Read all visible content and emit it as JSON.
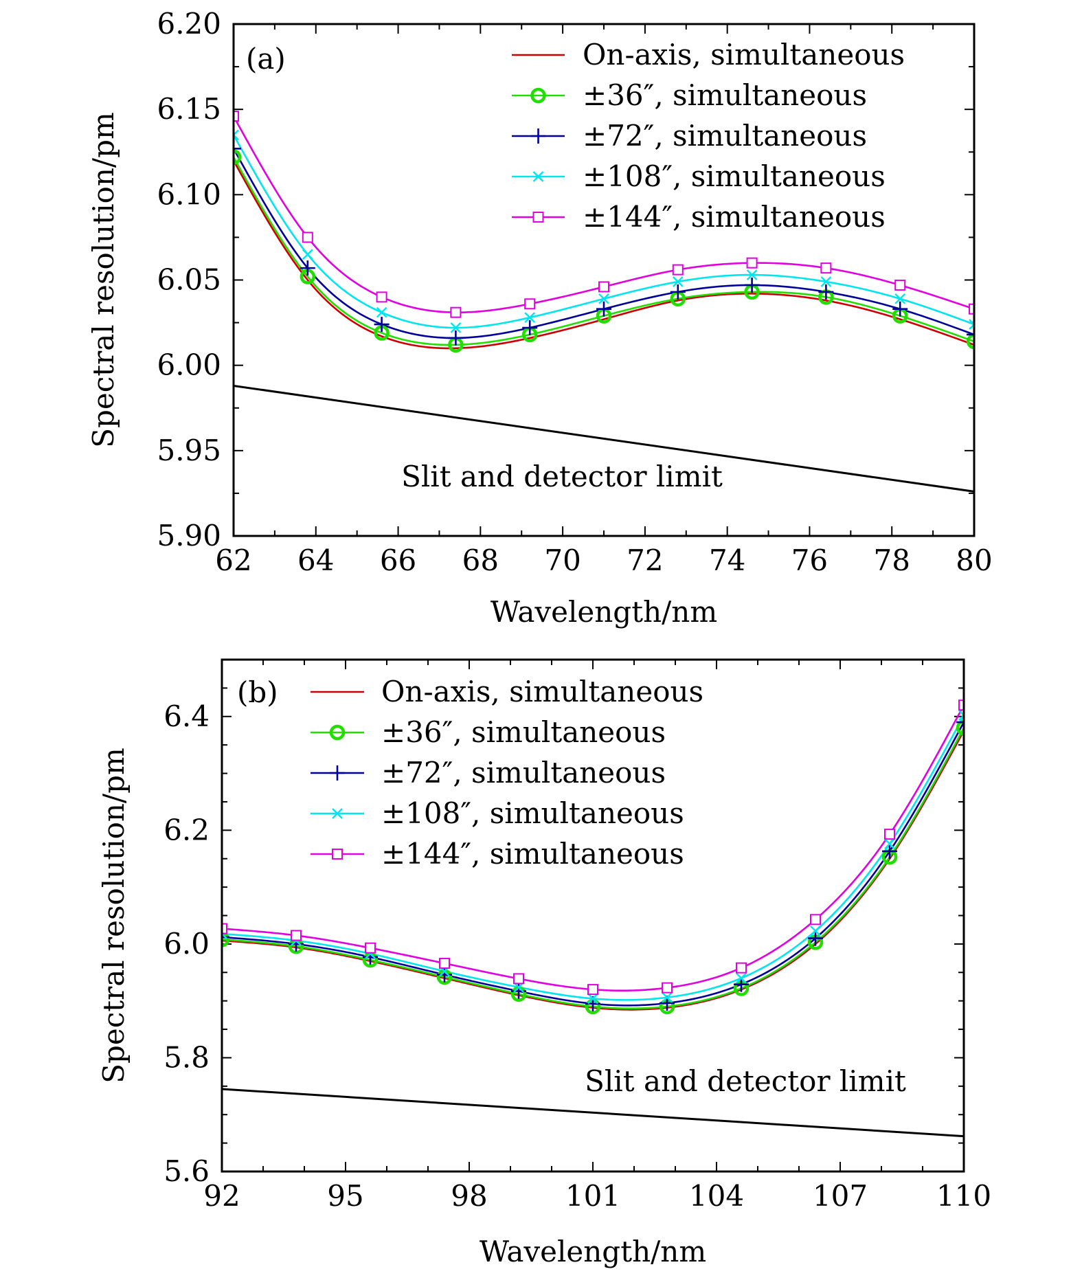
{
  "chart_data": [
    {
      "type": "line",
      "panel_label": "(a)",
      "xlabel": "Wavelength/nm",
      "ylabel": "Spectral resolution/pm",
      "xlim": [
        62,
        80
      ],
      "ylim": [
        5.9,
        6.2
      ],
      "xticks": [
        62,
        64,
        66,
        68,
        70,
        72,
        74,
        76,
        78,
        80
      ],
      "xtick_labels": [
        "62",
        "64",
        "66",
        "68",
        "70",
        "72",
        "74",
        "76",
        "78",
        "80"
      ],
      "yticks": [
        5.9,
        5.95,
        6.0,
        6.05,
        6.1,
        6.15,
        6.2
      ],
      "ytick_labels": [
        "5.90",
        "5.95",
        "6.00",
        "6.05",
        "6.10",
        "6.15",
        "6.20"
      ],
      "legend_position": "top-right",
      "limit_label": "Slit and detector limit",
      "limit_line": {
        "x": [
          62,
          80
        ],
        "y": [
          5.988,
          5.926
        ]
      },
      "x": [
        62,
        63.8,
        65.6,
        67.4,
        69.2,
        71.0,
        72.8,
        74.6,
        76.4,
        78.2,
        80
      ],
      "series": [
        {
          "name": "On-axis, simultaneous",
          "color": "#cc0000",
          "marker": "none",
          "values": [
            6.12,
            6.05,
            6.017,
            6.01,
            6.016,
            6.027,
            6.038,
            6.042,
            6.038,
            6.027,
            6.012
          ]
        },
        {
          "name": "±36″, simultaneous",
          "color": "#22dd00",
          "marker": "circle",
          "values": [
            6.122,
            6.052,
            6.019,
            6.012,
            6.018,
            6.029,
            6.039,
            6.043,
            6.04,
            6.029,
            6.014
          ]
        },
        {
          "name": "±72″, simultaneous",
          "color": "#000099",
          "marker": "plus",
          "values": [
            6.127,
            6.057,
            6.024,
            6.016,
            6.022,
            6.033,
            6.043,
            6.047,
            6.043,
            6.033,
            6.018
          ]
        },
        {
          "name": "±108″, simultaneous",
          "color": "#00e5ee",
          "marker": "x",
          "values": [
            6.135,
            6.065,
            6.031,
            6.022,
            6.028,
            6.039,
            6.049,
            6.053,
            6.049,
            6.039,
            6.024
          ]
        },
        {
          "name": "±144″, simultaneous",
          "color": "#e000e0",
          "marker": "square",
          "values": [
            6.146,
            6.075,
            6.04,
            6.031,
            6.036,
            6.046,
            6.056,
            6.06,
            6.057,
            6.047,
            6.033
          ]
        }
      ]
    },
    {
      "type": "line",
      "panel_label": "(b)",
      "xlabel": "Wavelength/nm",
      "ylabel": "Spectral resolution/pm",
      "xlim": [
        92,
        110
      ],
      "ylim": [
        5.6,
        6.5
      ],
      "xticks": [
        92,
        95,
        98,
        101,
        104,
        107,
        110
      ],
      "xtick_labels": [
        "92",
        "95",
        "98",
        "101",
        "104",
        "107",
        "110"
      ],
      "yticks": [
        5.6,
        5.8,
        6.0,
        6.2,
        6.4
      ],
      "ytick_labels": [
        "5.6",
        "5.8",
        "6.0",
        "6.2",
        "6.4"
      ],
      "legend_position": "top-left",
      "limit_label": "Slit and detector limit",
      "limit_line": {
        "x": [
          92,
          110
        ],
        "y": [
          5.745,
          5.662
        ]
      },
      "x": [
        92,
        93.8,
        95.6,
        97.4,
        99.2,
        101.0,
        102.8,
        104.6,
        106.4,
        108.2,
        110
      ],
      "series": [
        {
          "name": "On-axis, simultaneous",
          "color": "#cc0000",
          "marker": "none",
          "values": [
            6.006,
            5.994,
            5.97,
            5.94,
            5.91,
            5.888,
            5.888,
            5.92,
            6.0,
            6.15,
            6.375
          ]
        },
        {
          "name": "±36″, simultaneous",
          "color": "#22dd00",
          "marker": "circle",
          "values": [
            6.008,
            5.996,
            5.972,
            5.942,
            5.912,
            5.89,
            5.89,
            5.922,
            6.003,
            6.153,
            6.38
          ]
        },
        {
          "name": "±72″, simultaneous",
          "color": "#000099",
          "marker": "plus",
          "values": [
            6.012,
            6.0,
            5.977,
            5.946,
            5.917,
            5.895,
            5.896,
            5.929,
            6.01,
            6.163,
            6.39
          ]
        },
        {
          "name": "±108″, simultaneous",
          "color": "#00e5ee",
          "marker": "x",
          "values": [
            6.018,
            6.006,
            5.983,
            5.952,
            5.924,
            5.904,
            5.906,
            5.94,
            6.023,
            6.176,
            6.402
          ]
        },
        {
          "name": "±144″, simultaneous",
          "color": "#e000e0",
          "marker": "square",
          "values": [
            6.027,
            6.015,
            5.993,
            5.966,
            5.939,
            5.92,
            5.923,
            5.958,
            6.043,
            6.193,
            6.42
          ]
        }
      ]
    }
  ]
}
